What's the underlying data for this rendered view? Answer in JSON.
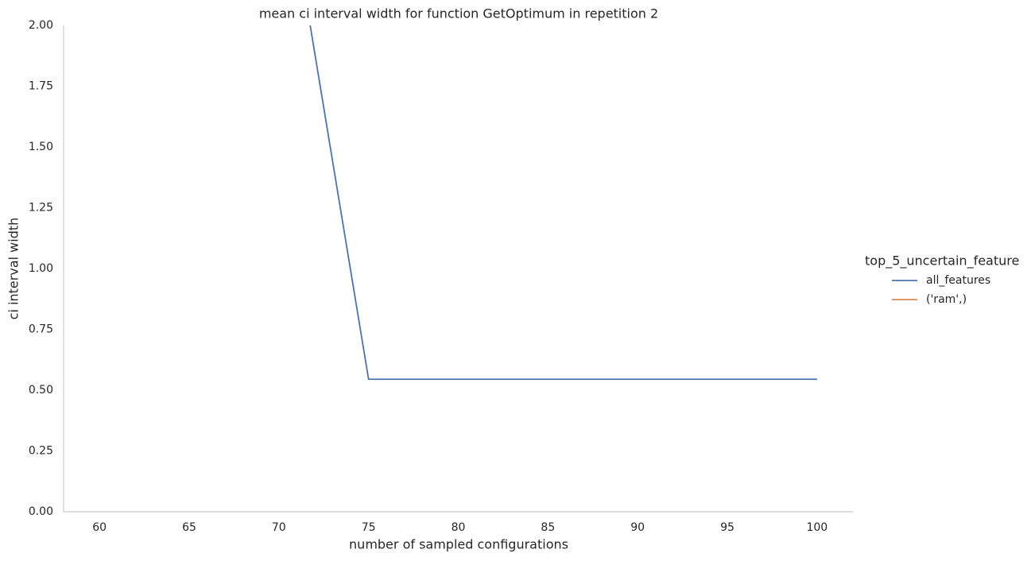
{
  "chart_data": {
    "type": "line",
    "title": "mean ci interval width for function GetOptimum in repetition 2",
    "x_label": "number of sampled configurations",
    "y_label": "ci interval width",
    "x": [
      70,
      75,
      80,
      85,
      90,
      95,
      100
    ],
    "series": [
      {
        "name": "all_features",
        "color": "#4c72b0",
        "values": [
          2.78,
          0.545,
          0.545,
          0.545,
          0.545,
          0.545,
          0.545
        ]
      },
      {
        "name": "('ram',)",
        "color": "#dd8452",
        "values": [
          null,
          null,
          null,
          null,
          null,
          null,
          null
        ]
      }
    ],
    "legend_title": "top_5_uncertain_feature",
    "legend": "right",
    "grid": false,
    "xlim": [
      58,
      102
    ],
    "xticks": [
      60,
      65,
      70,
      75,
      80,
      85,
      90,
      95,
      100
    ],
    "ylim": [
      0,
      2
    ],
    "yticks": [
      {
        "value": 0,
        "label": "0.00"
      },
      {
        "value": 0.25,
        "label": "0.25"
      },
      {
        "value": 0.5,
        "label": "0.50"
      },
      {
        "value": 0.75,
        "label": "0.75"
      },
      {
        "value": 1,
        "label": "1.00"
      },
      {
        "value": 1.25,
        "label": "1.25"
      },
      {
        "value": 1.5,
        "label": "1.50"
      },
      {
        "value": 1.75,
        "label": "1.75"
      },
      {
        "value": 2,
        "label": "2.00"
      }
    ]
  }
}
